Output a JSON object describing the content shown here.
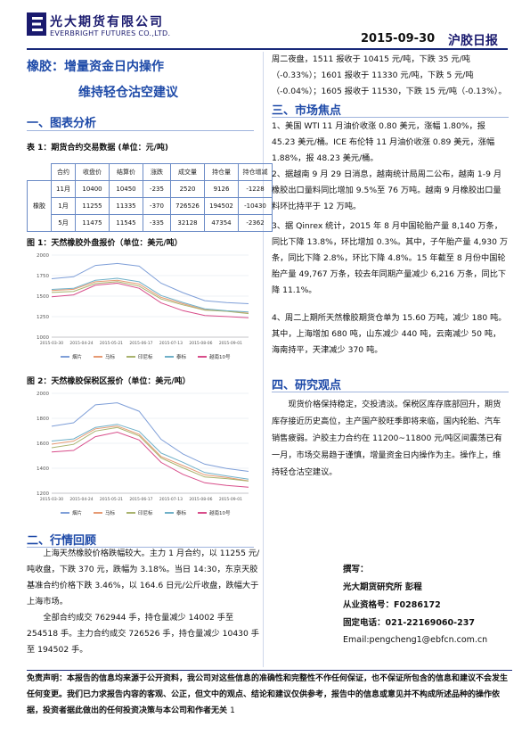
{
  "header": {
    "company_cn": "光大期货有限公司",
    "company_en": "EVERBRIGHT FUTURES CO.,LTD.",
    "date": "2015-09-30",
    "report_type": "沪胶日报",
    "brand_color": "#1a1a6e"
  },
  "title": {
    "line1": "橡胶：增量资金日内操作",
    "line2": "维持轻仓沽空建议"
  },
  "sections": {
    "chart_analysis": "一、图表分析",
    "market_review": "二、行情回顾",
    "market_focus": "三、市场焦点",
    "research_view": "四、研究观点"
  },
  "table": {
    "caption": "表 1：期货合约交易数据  (单位：元/吨)",
    "headers": [
      "合约",
      "收盘价",
      "结算价",
      "涨跌",
      "成交量",
      "持仓量",
      "持仓增减"
    ],
    "group_label": "橡胶",
    "rows": [
      [
        "11月",
        "10400",
        "10450",
        "-235",
        "2520",
        "9126",
        "-1228"
      ],
      [
        "1月",
        "11255",
        "11335",
        "-370",
        "726526",
        "194502",
        "-10430"
      ],
      [
        "5月",
        "11475",
        "11545",
        "-335",
        "32128",
        "47354",
        "-2362"
      ]
    ]
  },
  "chart_data": [
    {
      "type": "line",
      "caption": "图 1：天然橡胶外盘报价（单位：美元/吨）",
      "ylim": [
        1000,
        2000
      ],
      "yticks": [
        "1000",
        "1250",
        "1500",
        "1750",
        "2000"
      ],
      "xticks": [
        "2015-03-30",
        "2015-04-24",
        "2015-05-21",
        "2015-06-17",
        "2015-07-13",
        "2015-08-06",
        "2015-09-01"
      ],
      "legend": [
        "烟片",
        "马标",
        "印尼标",
        "泰标",
        "越南10号"
      ],
      "series": [
        {
          "name": "烟片",
          "color": "#7f9fd8",
          "values": [
            1720,
            1740,
            1870,
            1890,
            1860,
            1660,
            1550,
            1450,
            1420,
            1400
          ]
        },
        {
          "name": "马标",
          "color": "#e69a73",
          "values": [
            1560,
            1580,
            1680,
            1700,
            1650,
            1480,
            1400,
            1330,
            1320,
            1300
          ]
        },
        {
          "name": "印尼标",
          "color": "#a9b36e",
          "values": [
            1540,
            1550,
            1650,
            1680,
            1630,
            1470,
            1390,
            1320,
            1310,
            1290
          ]
        },
        {
          "name": "泰标",
          "color": "#6fb0c8",
          "values": [
            1580,
            1600,
            1700,
            1720,
            1670,
            1500,
            1420,
            1350,
            1330,
            1310
          ]
        },
        {
          "name": "越南10号",
          "color": "#d84d8a",
          "values": [
            1500,
            1520,
            1630,
            1650,
            1590,
            1420,
            1330,
            1270,
            1250,
            1230
          ]
        }
      ]
    },
    {
      "type": "line",
      "caption": "图 2：天然橡胶保税区报价（单位：美元/吨）",
      "ylim": [
        1200,
        2000
      ],
      "yticks": [
        "1200",
        "1400",
        "1600",
        "1800",
        "2000"
      ],
      "xticks": [
        "2015-03-30",
        "2015-04-24",
        "2015-05-21",
        "2015-06-17",
        "2015-07-13",
        "2015-08-06",
        "2015-09-01"
      ],
      "legend": [
        "烟片",
        "马标",
        "印尼标",
        "泰标",
        "越南10号"
      ],
      "series": [
        {
          "name": "烟片",
          "color": "#7f9fd8",
          "values": [
            1740,
            1760,
            1900,
            1920,
            1860,
            1640,
            1520,
            1430,
            1390,
            1370
          ]
        },
        {
          "name": "马标",
          "color": "#e69a73",
          "values": [
            1590,
            1610,
            1710,
            1740,
            1680,
            1500,
            1420,
            1340,
            1320,
            1300
          ]
        },
        {
          "name": "印尼标",
          "color": "#a9b36e",
          "values": [
            1570,
            1590,
            1690,
            1720,
            1660,
            1490,
            1410,
            1330,
            1310,
            1290
          ]
        },
        {
          "name": "泰标",
          "color": "#6fb0c8",
          "values": [
            1610,
            1630,
            1730,
            1760,
            1700,
            1520,
            1440,
            1360,
            1340,
            1320
          ]
        },
        {
          "name": "越南10号",
          "color": "#d84d8a",
          "values": [
            1530,
            1550,
            1660,
            1690,
            1620,
            1440,
            1350,
            1290,
            1270,
            1250
          ]
        }
      ]
    }
  ],
  "market_review": [
    "上海天然橡胶价格跌幅较大。主力 1 月合约，以 11255 元/吨收盘，下跌 370 元，跌幅为 3.18%。当日 14:30，东京天胶基准合约价格下跌 3.46%，以 164.6 日元/公斤收盘，跌幅大于上海市场。",
    "全部合约成交 762944 手，持仓量减少 14002 手至 254518 手。主力合约成交 726526 手，持仓量减少 10430 手至 194502 手。",
    "周二夜盘，1511 报收于 10415 元/吨，下跌 35 元/吨（-0.33%）；1601 报收于 11330 元/吨，下跌 5 元/吨（-0.04%）；1605 报收于 11530，下跌 15 元/吨（-0.13%）。"
  ],
  "market_focus": [
    "1、美国 WTI 11 月油价收涨 0.80 美元，涨幅 1.80%，报 45.23 美元/桶。ICE 布伦特 11 月油价收涨 0.89 美元，涨幅 1.88%，报 48.23 美元/桶。",
    "2、据越南 9 月 29 日消息，越南统计局周二公布，越南 1-9 月橡胶出口量料同比增加 9.5%至 76 万吨。越南 9 月橡胶出口量料环比持平于 12 万吨。",
    "3、据 Qinrex 统计，2015 年 8 月中国轮胎产量 8,140 万条，同比下降 13.8%，环比增加 0.3%。其中，子午胎产量 4,930 万条，同比下降 2.8%，环比下降 4.8%。15 年截至 8 月份中国轮胎产量 49,767 万条，较去年同期产量减少 6,216 万条，同比下降 11.1%。",
    "4、周二上期所天然橡胶期货仓单为 15.60 万吨，减少 180 吨。其中，上海增加 680 吨，山东减少 440 吨，云南减少 50 吨，海南持平，天津减少 370 吨。"
  ],
  "research_view": "现货价格保持稳定，交投清淡。保税区库存底部回升，期货库存接近历史高位，主产国产胶旺季即将来临，国内轮胎、汽车销售疲弱。沪胶主力合约在 11200~11800 元/吨区间震荡已有一月，市场交易趋于谨慎，增量资金日内操作为主。操作上，维持轻仓沽空建议。",
  "contact": {
    "label": "撰写：",
    "author": "光大期货研究所 彭程",
    "license": "从业资格号：F0286172",
    "phone": "固定电话：021-22169060-237",
    "email": "Email:pengcheng1@ebfcn.com.cn"
  },
  "disclaimer": "免责声明：本报告的信息均来源于公开资料，我公司对这些信息的准确性和完整性不作任何保证，也不保证所包含的信息和建议不会发生任何变更。我们已力求报告内容的客观、公正，但文中的观点、结论和建议仅供参考，报告中的信息或意见并不构成所述品种的操作依据，投资者据此做出的任何投资决策与本公司和作者无关",
  "page_number": "1"
}
